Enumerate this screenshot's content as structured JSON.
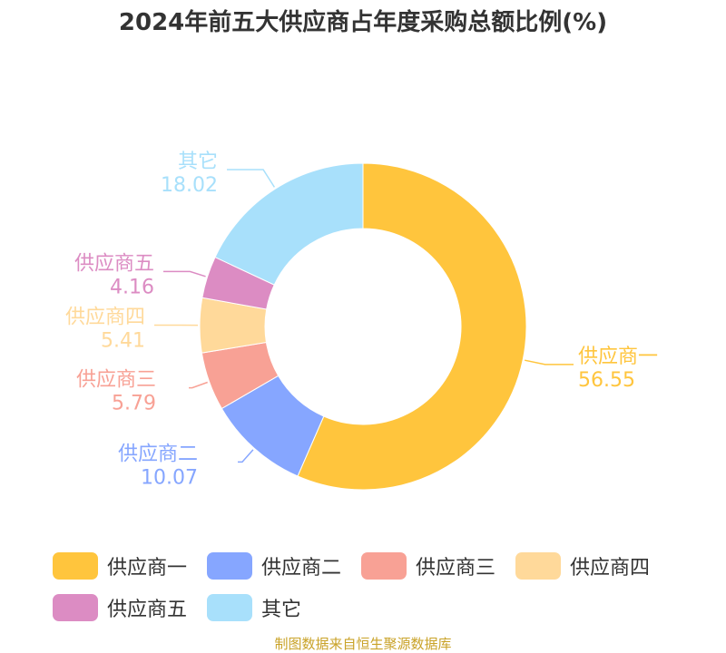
{
  "chart_data": {
    "type": "pie",
    "style": "donut",
    "title": "2024年前五大供应商占年度采购总额比例(%)",
    "categories": [
      "供应商一",
      "供应商二",
      "供应商三",
      "供应商四",
      "供应商五",
      "其它"
    ],
    "values": [
      56.55,
      10.07,
      5.79,
      5.41,
      4.16,
      18.02
    ],
    "value_labels": [
      "56.55",
      "10.07",
      "5.79",
      "5.41",
      "4.16",
      "18.02"
    ],
    "colors": [
      "#ffc53d",
      "#86a6ff",
      "#f8a195",
      "#ffd99a",
      "#dc8cc3",
      "#a8e0fb"
    ],
    "legend": {
      "position": "bottom",
      "items": [
        "供应商一",
        "供应商二",
        "供应商三",
        "供应商四",
        "供应商五",
        "其它"
      ]
    }
  },
  "source": "制图数据来自恒生聚源数据库"
}
